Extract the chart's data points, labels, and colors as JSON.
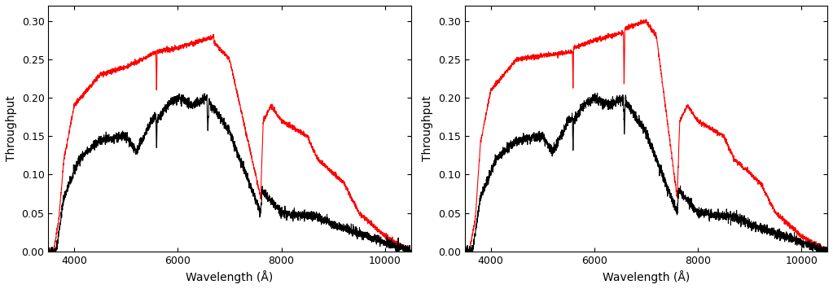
{
  "title": "",
  "xlabel": "Wavelength (Å)",
  "ylabel": "Throughput",
  "xlim": [
    3500,
    10500
  ],
  "ylim": [
    0.0,
    0.32
  ],
  "yticks": [
    0.0,
    0.05,
    0.1,
    0.15,
    0.2,
    0.25,
    0.3
  ],
  "xticks": [
    4000,
    6000,
    8000,
    10000
  ],
  "sdss_color": "#000000",
  "boss_color": "#ff0000",
  "background_color": "#ffffff",
  "linewidth": 0.8,
  "figsize": [
    10.23,
    3.55
  ],
  "dpi": 100
}
